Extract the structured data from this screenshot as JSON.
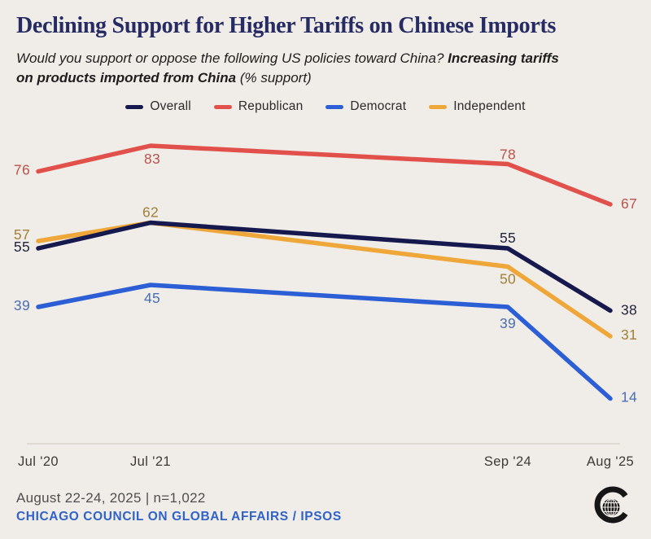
{
  "header": {
    "title": "Declining Support for Higher Tariffs on Chinese Imports",
    "subtitle": {
      "line1_regular": "Would you support or oppose the following US policies toward China?",
      "line1_bold": "Increasing tariffs",
      "line2_bold": "on products imported from China",
      "line2_regular": "(% support)"
    }
  },
  "chart_data": {
    "type": "line",
    "title": "Declining Support for Higher Tariffs on Chinese Imports",
    "categories": [
      "Jul '20",
      "Jul '21",
      "Sep '24",
      "Aug '25"
    ],
    "series": [
      {
        "name": "Overall",
        "values": [
          55,
          62,
          55,
          38
        ],
        "color": "#16194d",
        "label_color": "#22253c"
      },
      {
        "name": "Republican",
        "values": [
          76,
          83,
          78,
          67
        ],
        "color": "#e2504b",
        "label_color": "#bc524e"
      },
      {
        "name": "Democrat",
        "values": [
          39,
          45,
          39,
          14
        ],
        "color": "#2c5ed6",
        "label_color": "#4a6fb5"
      },
      {
        "name": "Independent",
        "values": [
          57,
          62,
          50,
          31
        ],
        "color": "#f0a739",
        "label_color": "#a0803a"
      }
    ],
    "ylim": [
      0,
      100
    ],
    "grid": false,
    "legend_position": "top",
    "point_labels_visible": true
  },
  "footer": {
    "note": "August 22-24, 2025 | n=1,022",
    "source": "CHICAGO COUNCIL ON GLOBAL AFFAIRS / IPSOS"
  },
  "colors": {
    "background": "#f0ece7",
    "title": "#262b63",
    "axis_line": "#d8d3cc",
    "source_blue": "#2f63c9"
  }
}
